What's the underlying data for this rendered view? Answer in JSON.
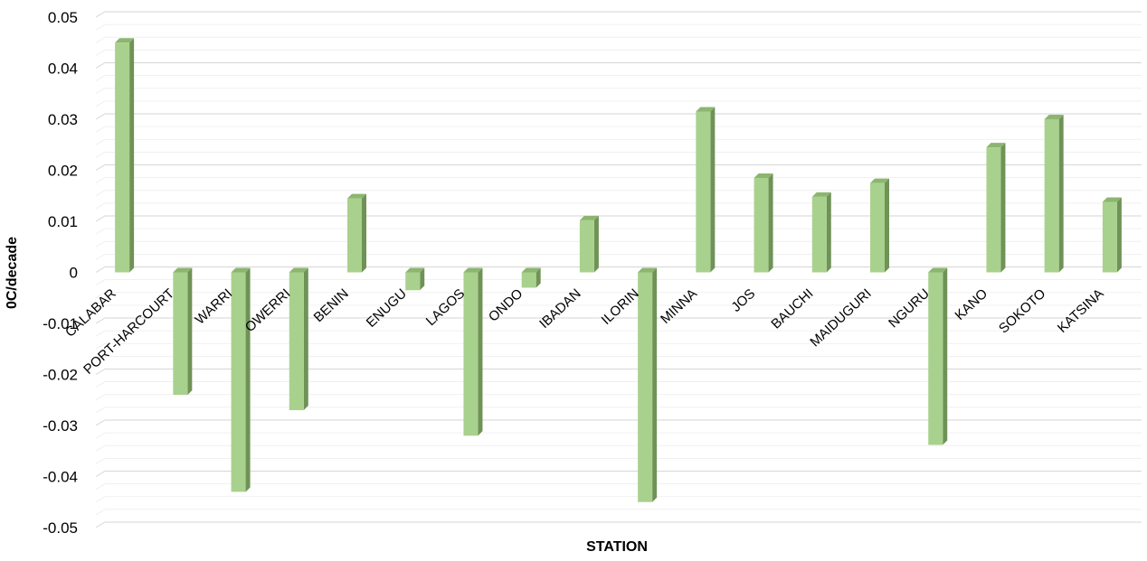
{
  "chart_data": {
    "type": "bar",
    "xlabel": "STATION",
    "ylabel": "0C/decade",
    "ylim": [
      -0.05,
      0.05
    ],
    "yticks": [
      0.05,
      0.04,
      0.03,
      0.02,
      0.01,
      0,
      -0.01,
      -0.02,
      -0.03,
      -0.04,
      -0.05
    ],
    "ytick_labels": [
      "0.05",
      "0.04",
      "0.03",
      "0.02",
      "0.01",
      "0",
      "-0.01",
      "-0.02",
      "-0.03",
      "-0.04",
      "-0.05"
    ],
    "grid": true,
    "bar_color": "#a9d18e",
    "bar_side_color": "#6f9256",
    "bar_top_color": "#8cb56f",
    "categories": [
      "CALABAR",
      "PORT-HARCOURT",
      "WARRI",
      "OWERRI",
      "BENIN",
      "ENUGU",
      "LAGOS",
      "ONDO",
      "IBADAN",
      "ILORIN",
      "MINNA",
      "JOS",
      "BAUCHI",
      "MAIDUGURI",
      "NGURU",
      "KANO",
      "SOKOTO",
      "KATSINA"
    ],
    "values": [
      0.045,
      -0.024,
      -0.043,
      -0.027,
      0.0145,
      -0.0035,
      -0.032,
      -0.003,
      0.0102,
      -0.045,
      0.0315,
      0.0185,
      0.0148,
      0.0175,
      -0.0338,
      0.0245,
      0.03,
      0.0138
    ]
  }
}
